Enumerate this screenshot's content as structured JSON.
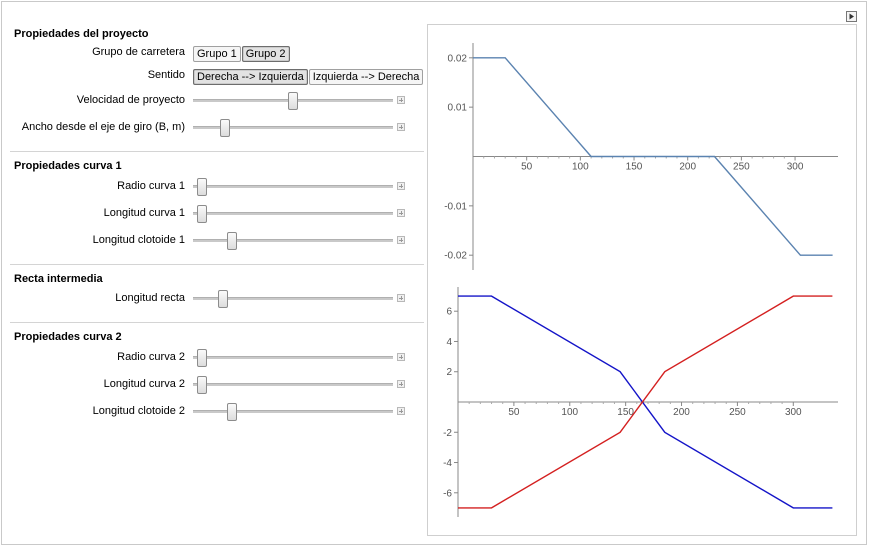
{
  "sections": {
    "proyecto": "Propiedades del proyecto",
    "curva1": "Propiedades curva 1",
    "recta": "Recta intermedia",
    "curva2": "Propiedades curva 2"
  },
  "controls": {
    "grupo": {
      "label": "Grupo de carretera",
      "options": [
        "Grupo 1",
        "Grupo 2"
      ],
      "selected": "Grupo 2"
    },
    "sentido": {
      "label": "Sentido",
      "options": [
        "Derecha --> Izquierda",
        "Izquierda --> Derecha"
      ],
      "selected": "Derecha --> Izquierda"
    },
    "velocidad": {
      "label": "Velocidad de proyecto",
      "fraction": 0.5
    },
    "ancho": {
      "label": "Ancho desde el eje de giro (B, m)",
      "fraction": 0.14
    },
    "radio1": {
      "label": "Radio curva 1",
      "fraction": 0.02
    },
    "longitud1": {
      "label": "Longitud curva 1",
      "fraction": 0.02
    },
    "clotoide1": {
      "label": "Longitud clotoide 1",
      "fraction": 0.18
    },
    "recta": {
      "label": "Longitud recta",
      "fraction": 0.13
    },
    "radio2": {
      "label": "Radio curva 2",
      "fraction": 0.02
    },
    "longitud2": {
      "label": "Longitud curva 2",
      "fraction": 0.02
    },
    "clotoide2": {
      "label": "Longitud clotoide 2",
      "fraction": 0.18
    }
  },
  "chart_data": [
    {
      "type": "line",
      "xlim": [
        0,
        340
      ],
      "ylim": [
        -0.023,
        0.023
      ],
      "x_ticks": [
        "50",
        "100",
        "150",
        "200",
        "250",
        "300"
      ],
      "y_ticks": [
        "0.02",
        "0.01",
        "-0.01",
        "-0.02"
      ],
      "series": [
        {
          "color": "#5b83b0",
          "x": [
            0,
            30,
            110,
            225,
            305,
            335
          ],
          "y": [
            0.02,
            0.02,
            0,
            0,
            -0.02,
            -0.02
          ]
        }
      ]
    },
    {
      "type": "line",
      "xlim": [
        0,
        340
      ],
      "ylim": [
        -7.6,
        7.6
      ],
      "x_ticks": [
        "50",
        "100",
        "150",
        "200",
        "250",
        "300"
      ],
      "y_ticks": [
        "6",
        "4",
        "2",
        "-2",
        "-4",
        "-6"
      ],
      "series": [
        {
          "color": "#1414c8",
          "x": [
            0,
            30,
            145,
            185,
            300,
            335
          ],
          "y": [
            7,
            7,
            2,
            -2,
            -7,
            -7
          ]
        },
        {
          "color": "#d42020",
          "x": [
            0,
            30,
            145,
            185,
            300,
            335
          ],
          "y": [
            -7,
            -7,
            -2,
            2,
            7,
            7
          ]
        }
      ]
    }
  ]
}
